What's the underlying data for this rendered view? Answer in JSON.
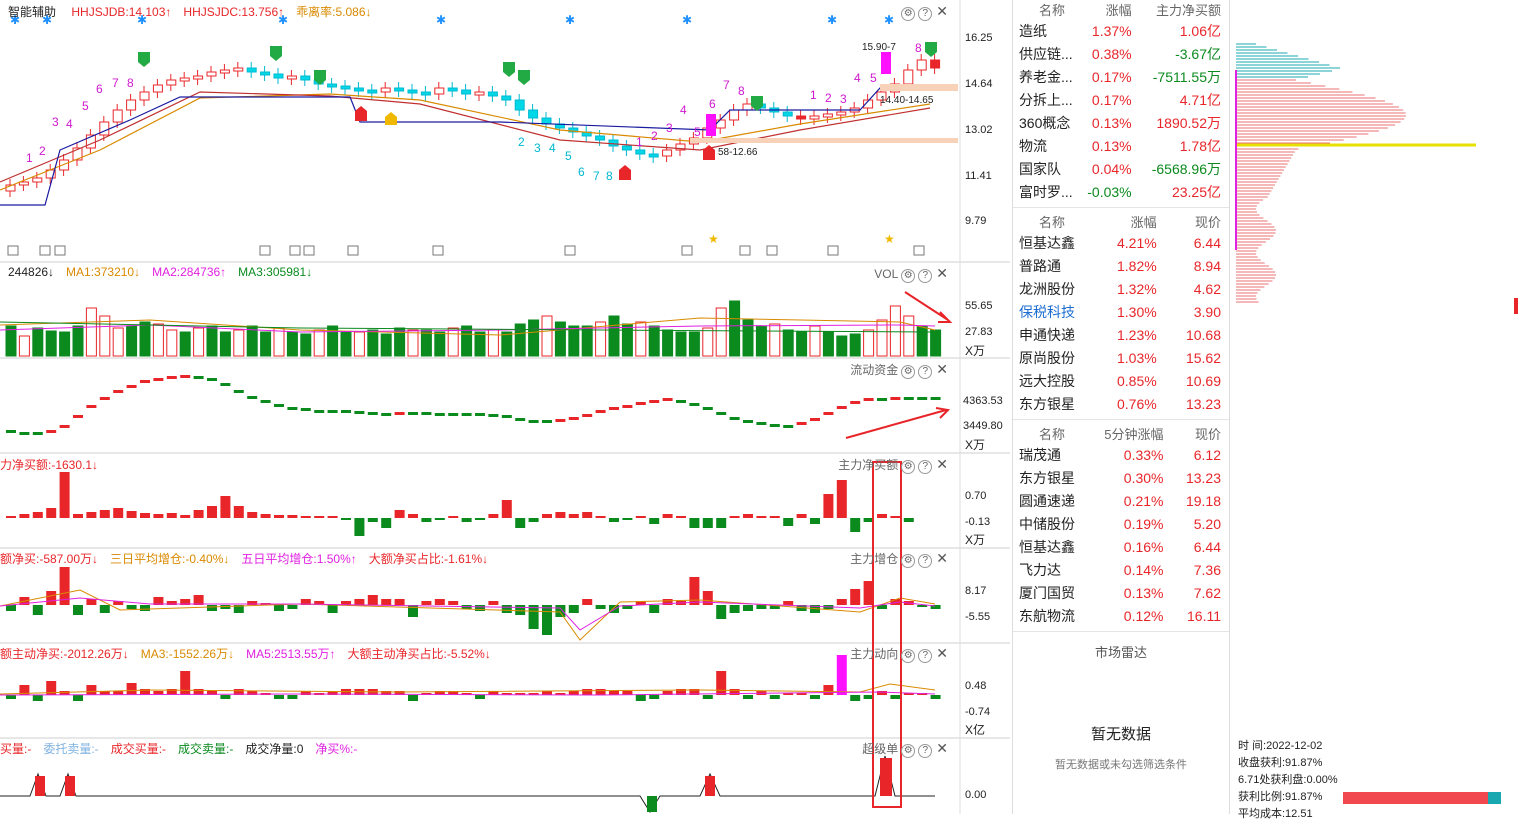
{
  "main_panel": {
    "title": "智能辅助",
    "indicators": [
      {
        "text": "HHJSJDB:14.103",
        "arrow": "up",
        "color": "#e8262a"
      },
      {
        "text": "HHJSJDC:13.756",
        "arrow": "up",
        "color": "#e8262a"
      },
      {
        "text": "乖离率:5.086",
        "arrow": "down",
        "color": "#d98a00"
      }
    ],
    "price_axis": [
      "16.25",
      "14.64",
      "13.02",
      "11.41",
      "9.79"
    ],
    "annotations": {
      "high_label": "15.90-7",
      "range_label": "14.40-14.65",
      "low_label": "58-12.66"
    }
  },
  "volume_panel": {
    "name": "VOL",
    "indicators": [
      {
        "text": "244826",
        "arrow": "down",
        "color": "#222"
      },
      {
        "text": "MA1:373210",
        "arrow": "down",
        "color": "#d98a00"
      },
      {
        "text": "MA2:284736",
        "arrow": "up",
        "color": "#e020e0"
      },
      {
        "text": "MA3:305981",
        "arrow": "down",
        "color": "#0b8a1e"
      }
    ],
    "axis": [
      "55.65",
      "27.83"
    ],
    "unit": "X万"
  },
  "flow_panel": {
    "name": "流动资金",
    "axis": [
      "4363.53",
      "3449.80"
    ],
    "unit": "X万"
  },
  "net_buy_panel": {
    "name": "主力净买额",
    "indicators": [
      {
        "text": "力净买额:-1630.1",
        "arrow": "down",
        "color": "#e8262a"
      }
    ],
    "axis": [
      "0.70",
      "-0.13"
    ],
    "unit": "X万"
  },
  "accum_panel": {
    "name": "主力增仓",
    "indicators": [
      {
        "text": "额净买:-587.00万",
        "arrow": "down",
        "color": "#e8262a"
      },
      {
        "text": "三日平均增仓:-0.40%",
        "arrow": "down",
        "color": "#d98a00"
      },
      {
        "text": "五日平均增仓:1.50%",
        "arrow": "up",
        "color": "#e020e0"
      },
      {
        "text": "大额净买占比:-1.61%",
        "arrow": "down",
        "color": "#e8262a"
      }
    ],
    "axis": [
      "8.17",
      "-5.55"
    ]
  },
  "active_panel": {
    "name": "主力动向",
    "indicators": [
      {
        "text": "额主动净买:-2012.26万",
        "arrow": "down",
        "color": "#e8262a"
      },
      {
        "text": "MA3:-1552.26万",
        "arrow": "down",
        "color": "#d98a00"
      },
      {
        "text": "MA5:2513.55万",
        "arrow": "up",
        "color": "#e020e0"
      },
      {
        "text": "大额主动净买占比:-5.52%",
        "arrow": "down",
        "color": "#e8262a"
      }
    ],
    "axis": [
      "0.48",
      "-0.74"
    ],
    "unit": "X亿"
  },
  "super_panel": {
    "name": "超级单",
    "indicators": [
      {
        "text": "买量:-",
        "color": "#e8262a"
      },
      {
        "text": "委托卖量:-",
        "color": "#7fb2e0"
      },
      {
        "text": "成交买量:-",
        "color": "#e8262a"
      },
      {
        "text": "成交卖量:-",
        "color": "#0b8a1e"
      },
      {
        "text": "成交净量:0",
        "color": "#222"
      },
      {
        "text": "净买%:-",
        "color": "#e020e0"
      }
    ],
    "axis": [
      "0.00"
    ]
  },
  "sector_table": {
    "headers": [
      "名称",
      "涨幅",
      "主力净买额"
    ],
    "rows": [
      {
        "name": "造纸",
        "change": "1.37%",
        "flow": "1.06亿",
        "cc": "red",
        "fc": "red"
      },
      {
        "name": "供应链...",
        "change": "0.38%",
        "flow": "-3.67亿",
        "cc": "red",
        "fc": "green"
      },
      {
        "name": "养老金...",
        "change": "0.17%",
        "flow": "-7511.55万",
        "cc": "red",
        "fc": "green"
      },
      {
        "name": "分拆上...",
        "change": "0.17%",
        "flow": "4.71亿",
        "cc": "red",
        "fc": "red"
      },
      {
        "name": "360概念",
        "change": "0.13%",
        "flow": "1890.52万",
        "cc": "red",
        "fc": "red"
      },
      {
        "name": "物流",
        "change": "0.13%",
        "flow": "1.78亿",
        "cc": "red",
        "fc": "red"
      },
      {
        "name": "国家队",
        "change": "0.04%",
        "flow": "-6568.96万",
        "cc": "red",
        "fc": "green"
      },
      {
        "name": "富时罗...",
        "change": "-0.03%",
        "flow": "23.25亿",
        "cc": "green",
        "fc": "red"
      }
    ]
  },
  "stock_table": {
    "headers": [
      "名称",
      "涨幅",
      "现价"
    ],
    "rows": [
      {
        "name": "恒基达鑫",
        "change": "4.21%",
        "price": "6.44",
        "nc": "plain"
      },
      {
        "name": "普路通",
        "change": "1.82%",
        "price": "8.94",
        "nc": "plain"
      },
      {
        "name": "龙洲股份",
        "change": "1.32%",
        "price": "4.62",
        "nc": "plain"
      },
      {
        "name": "保税科技",
        "change": "1.30%",
        "price": "3.90",
        "nc": "blue"
      },
      {
        "name": "申通快递",
        "change": "1.23%",
        "price": "10.68",
        "nc": "plain"
      },
      {
        "name": "原尚股份",
        "change": "1.03%",
        "price": "15.62",
        "nc": "plain"
      },
      {
        "name": "远大控股",
        "change": "0.85%",
        "price": "10.69",
        "nc": "plain"
      },
      {
        "name": "东方银星",
        "change": "0.76%",
        "price": "13.23",
        "nc": "plain"
      }
    ]
  },
  "speed_table": {
    "headers": [
      "名称",
      "5分钟涨幅",
      "现价"
    ],
    "rows": [
      {
        "name": "瑞茂通",
        "change": "0.33%",
        "price": "6.12"
      },
      {
        "name": "东方银星",
        "change": "0.30%",
        "price": "13.23"
      },
      {
        "name": "圆通速递",
        "change": "0.21%",
        "price": "19.18"
      },
      {
        "name": "中储股份",
        "change": "0.19%",
        "price": "5.20"
      },
      {
        "name": "恒基达鑫",
        "change": "0.16%",
        "price": "6.44"
      },
      {
        "name": "飞力达",
        "change": "0.14%",
        "price": "7.36"
      },
      {
        "name": "厦门国贸",
        "change": "0.13%",
        "price": "7.62"
      },
      {
        "name": "东航物流",
        "change": "0.12%",
        "price": "16.11"
      }
    ]
  },
  "market_radar": {
    "title": "市场雷达",
    "empty": "暂无数据",
    "hint": "暂无数据或未勾选筛选条件"
  },
  "chip_info": {
    "time": "时 间:2022-12-02",
    "profit": "收盘获利:91.87%",
    "profit_range": "6.71处获利盘:0.00%",
    "ratio_label": "获利比例:91.87%",
    "ratio": 0.9187,
    "avg_cost": "平均成本:12.51"
  },
  "colors": {
    "up": "#e8262a",
    "down": "#0b8a1e",
    "bull_candle": "#e8262a",
    "bear_candle": "#00d8e8",
    "accent_box": "#e8262a"
  }
}
